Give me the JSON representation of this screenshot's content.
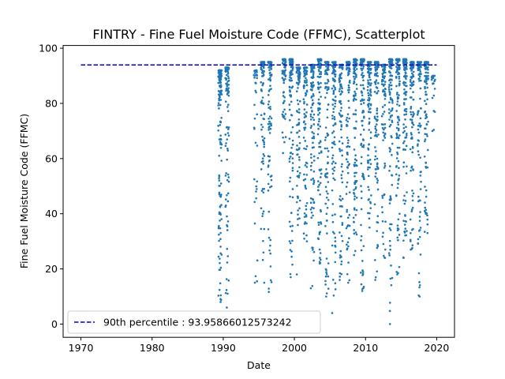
{
  "chart_data": {
    "type": "scatter",
    "title": "FINTRY - Fine Fuel Moisture Code (FFMC), Scatterplot",
    "xlabel": "Date",
    "ylabel": "Fine Fuel Moisture Code (FFMC)",
    "xlim": [
      1967.5,
      2022.5
    ],
    "ylim": [
      -4.8,
      101.0
    ],
    "x_ticks": [
      1970,
      1980,
      1990,
      2000,
      2010,
      2020
    ],
    "y_ticks": [
      0,
      20,
      40,
      60,
      80,
      100
    ],
    "grid": false,
    "legend_position": "lower-left",
    "colors": {
      "points": "#1f77b4",
      "threshold": "#0000cc",
      "axes": "#000000"
    },
    "threshold": {
      "label": "90th percentile : 93.95866012573242",
      "value": 93.95866012573242,
      "x_range": [
        1970,
        2020
      ],
      "style": "dashed"
    },
    "series": [
      {
        "marker": "point",
        "seasons": [
          {
            "year": 1989,
            "count": 150,
            "min": 8,
            "max": 92
          },
          {
            "year": 1990,
            "count": 110,
            "min": 6,
            "max": 93
          },
          {
            "year": 1994,
            "count": 40,
            "min": 15,
            "max": 92
          },
          {
            "year": 1995,
            "count": 95,
            "min": 15,
            "max": 95
          },
          {
            "year": 1996,
            "count": 95,
            "min": 4,
            "max": 95
          },
          {
            "year": 1998,
            "count": 70,
            "min": 62,
            "max": 96
          },
          {
            "year": 1999,
            "count": 120,
            "min": 17,
            "max": 96
          },
          {
            "year": 2000,
            "count": 110,
            "min": 18,
            "max": 93
          },
          {
            "year": 2001,
            "count": 110,
            "min": 30,
            "max": 93
          },
          {
            "year": 2002,
            "count": 110,
            "min": 13,
            "max": 94
          },
          {
            "year": 2003,
            "count": 120,
            "min": 22,
            "max": 96
          },
          {
            "year": 2004,
            "count": 110,
            "min": 10,
            "max": 95
          },
          {
            "year": 2005,
            "count": 120,
            "min": 4,
            "max": 95
          },
          {
            "year": 2006,
            "count": 110,
            "min": 16,
            "max": 94
          },
          {
            "year": 2007,
            "count": 110,
            "min": 15,
            "max": 95
          },
          {
            "year": 2008,
            "count": 120,
            "min": 25,
            "max": 96
          },
          {
            "year": 2009,
            "count": 115,
            "min": 12,
            "max": 96
          },
          {
            "year": 2010,
            "count": 115,
            "min": 35,
            "max": 95
          },
          {
            "year": 2011,
            "count": 115,
            "min": 16,
            "max": 95
          },
          {
            "year": 2012,
            "count": 110,
            "min": 24,
            "max": 94
          },
          {
            "year": 2013,
            "count": 120,
            "min": 0,
            "max": 96
          },
          {
            "year": 2014,
            "count": 115,
            "min": 18,
            "max": 96
          },
          {
            "year": 2015,
            "count": 120,
            "min": 24,
            "max": 96
          },
          {
            "year": 2016,
            "count": 115,
            "min": 27,
            "max": 95
          },
          {
            "year": 2017,
            "count": 110,
            "min": 10,
            "max": 95
          },
          {
            "year": 2018,
            "count": 110,
            "min": 33,
            "max": 95
          },
          {
            "year": 2019,
            "count": 25,
            "min": 70,
            "max": 90
          }
        ]
      }
    ]
  }
}
